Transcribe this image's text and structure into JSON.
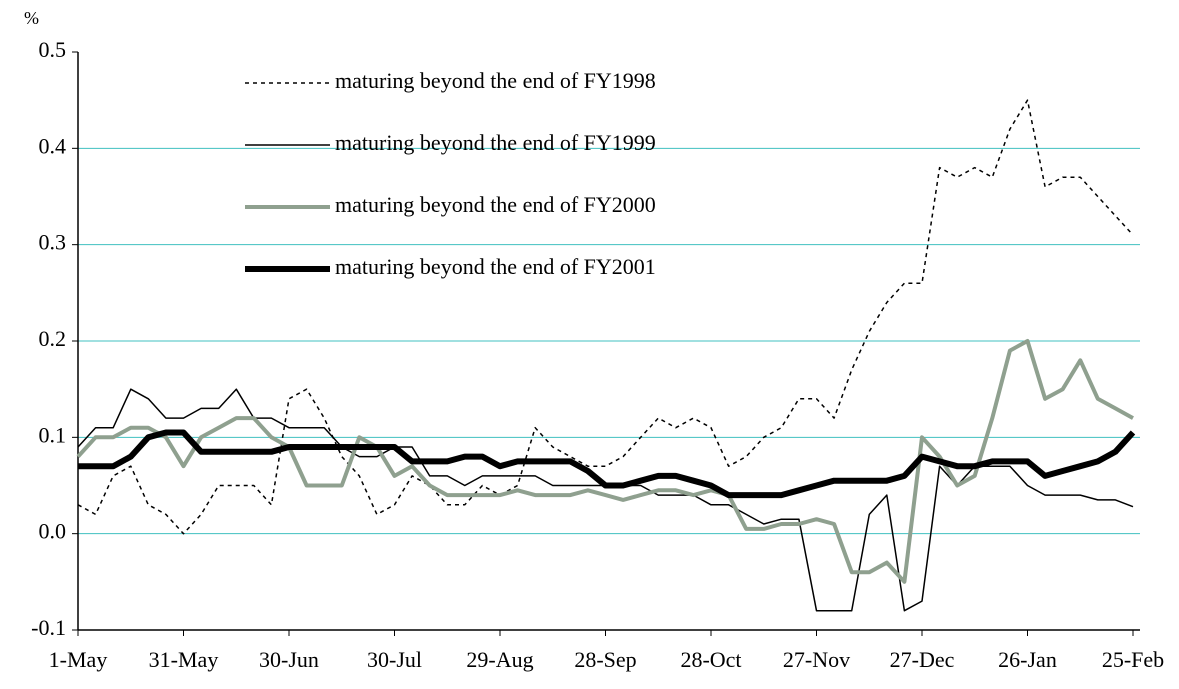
{
  "chart_data": {
    "type": "line",
    "y_label": "%",
    "categories": [
      "1-May",
      null,
      null,
      null,
      null,
      null,
      "31-May",
      null,
      null,
      null,
      null,
      null,
      "30-Jun",
      null,
      null,
      null,
      null,
      null,
      "30-Jul",
      null,
      null,
      null,
      null,
      null,
      "29-Aug",
      null,
      null,
      null,
      null,
      null,
      "28-Sep",
      null,
      null,
      null,
      null,
      null,
      "28-Oct",
      null,
      null,
      null,
      null,
      null,
      "27-Nov",
      null,
      null,
      null,
      null,
      null,
      "27-Dec",
      null,
      null,
      null,
      null,
      null,
      "26-Jan",
      null,
      null,
      null,
      null,
      null,
      "25-Feb"
    ],
    "ylim": [
      -0.1,
      0.5
    ],
    "yticks": [
      -0.1,
      {
        "value": 0,
        "label": "0.0"
      },
      0.1,
      0.2,
      0.3,
      0.4,
      0.5
    ],
    "grid": true,
    "grid_color": "#40c0c0",
    "series": [
      {
        "name": "maturing beyond the end of FY1998",
        "color": "#000000",
        "line_style": "dashed",
        "line_width": 1.5,
        "values": [
          0.03,
          0.02,
          0.06,
          0.07,
          0.03,
          0.02,
          0.0,
          0.02,
          0.05,
          0.05,
          0.05,
          0.03,
          0.14,
          0.15,
          0.12,
          0.08,
          0.06,
          0.02,
          0.03,
          0.06,
          0.05,
          0.03,
          0.03,
          0.05,
          0.04,
          0.05,
          0.11,
          0.09,
          0.08,
          0.07,
          0.07,
          0.08,
          0.1,
          0.12,
          0.11,
          0.12,
          0.11,
          0.07,
          0.08,
          0.1,
          0.11,
          0.14,
          0.14,
          0.12,
          0.17,
          0.21,
          0.24,
          0.26,
          0.26,
          0.38,
          0.37,
          0.38,
          0.37,
          0.42,
          0.45,
          0.36,
          0.37,
          0.37,
          0.35,
          0.33,
          0.31
        ]
      },
      {
        "name": "maturing beyond the end of FY1999",
        "color": "#000000",
        "line_style": "solid",
        "line_width": 1.5,
        "values": [
          0.09,
          0.11,
          0.11,
          0.15,
          0.14,
          0.12,
          0.12,
          0.13,
          0.13,
          0.15,
          0.12,
          0.12,
          0.11,
          0.11,
          0.11,
          0.09,
          0.08,
          0.08,
          0.09,
          0.09,
          0.06,
          0.06,
          0.05,
          0.06,
          0.06,
          0.06,
          0.06,
          0.05,
          0.05,
          0.05,
          0.05,
          0.05,
          0.05,
          0.04,
          0.04,
          0.04,
          0.03,
          0.03,
          0.02,
          0.01,
          0.015,
          0.015,
          -0.08,
          -0.08,
          -0.08,
          0.02,
          0.04,
          -0.08,
          -0.07,
          0.07,
          0.05,
          0.07,
          0.07,
          0.07,
          0.05,
          0.04,
          0.04,
          0.04,
          0.035,
          0.035,
          0.028
        ]
      },
      {
        "name": "maturing beyond the end of FY2000",
        "color": "#8fa08f",
        "line_style": "solid",
        "line_width": 4,
        "values": [
          0.08,
          0.1,
          0.1,
          0.11,
          0.11,
          0.1,
          0.07,
          0.1,
          0.11,
          0.12,
          0.12,
          0.1,
          0.09,
          0.05,
          0.05,
          0.05,
          0.1,
          0.09,
          0.06,
          0.07,
          0.05,
          0.04,
          0.04,
          0.04,
          0.04,
          0.045,
          0.04,
          0.04,
          0.04,
          0.045,
          0.04,
          0.035,
          0.04,
          0.045,
          0.045,
          0.04,
          0.045,
          0.04,
          0.005,
          0.005,
          0.01,
          0.01,
          0.015,
          0.01,
          -0.04,
          -0.04,
          -0.03,
          -0.05,
          0.1,
          0.08,
          0.05,
          0.06,
          0.12,
          0.19,
          0.2,
          0.14,
          0.15,
          0.18,
          0.14,
          0.13,
          0.12
        ]
      },
      {
        "name": "maturing beyond the end of FY2001",
        "color": "#000000",
        "line_style": "solid",
        "line_width": 6,
        "values": [
          0.07,
          0.07,
          0.07,
          0.08,
          0.1,
          0.105,
          0.105,
          0.085,
          0.085,
          0.085,
          0.085,
          0.085,
          0.09,
          0.09,
          0.09,
          0.09,
          0.09,
          0.09,
          0.09,
          0.075,
          0.075,
          0.075,
          0.08,
          0.08,
          0.07,
          0.075,
          0.075,
          0.075,
          0.075,
          0.065,
          0.05,
          0.05,
          0.055,
          0.06,
          0.06,
          0.055,
          0.05,
          0.04,
          0.04,
          0.04,
          0.04,
          0.045,
          0.05,
          0.055,
          0.055,
          0.055,
          0.055,
          0.06,
          0.08,
          0.075,
          0.07,
          0.07,
          0.075,
          0.075,
          0.075,
          0.06,
          0.065,
          0.07,
          0.075,
          0.085,
          0.105
        ]
      }
    ]
  }
}
